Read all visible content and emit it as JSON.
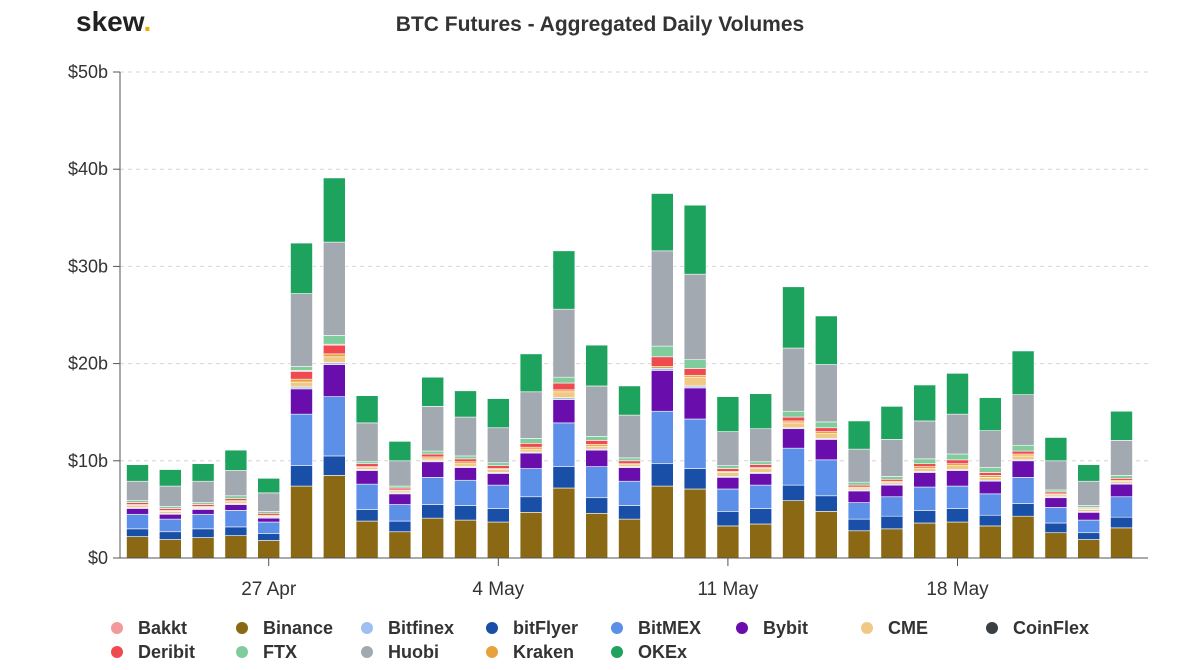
{
  "brand": {
    "name": "skew",
    "dot": "."
  },
  "chart_data": {
    "type": "bar",
    "stacked": true,
    "title": "BTC Futures - Aggregated Daily Volumes",
    "xlabel": "",
    "ylabel": "",
    "ylim": [
      0,
      50
    ],
    "yticks": [
      0,
      10,
      20,
      30,
      40,
      50
    ],
    "ytick_labels": [
      "$0",
      "$10b",
      "$20b",
      "$30b",
      "$40b",
      "$50b"
    ],
    "grid": true,
    "legend_position": "bottom",
    "x_tick_labels": [
      {
        "index": 4,
        "label": "27 Apr"
      },
      {
        "index": 11,
        "label": "4 May"
      },
      {
        "index": 18,
        "label": "11 May"
      },
      {
        "index": 25,
        "label": "18 May"
      }
    ],
    "categories": [
      "2020-04-23",
      "2020-04-24",
      "2020-04-25",
      "2020-04-26",
      "2020-04-27",
      "2020-04-28",
      "2020-04-29",
      "2020-04-30",
      "2020-05-01",
      "2020-05-02",
      "2020-05-03",
      "2020-05-04",
      "2020-05-05",
      "2020-05-06",
      "2020-05-07",
      "2020-05-08",
      "2020-05-09",
      "2020-05-10",
      "2020-05-11",
      "2020-05-12",
      "2020-05-13",
      "2020-05-14",
      "2020-05-15",
      "2020-05-16",
      "2020-05-17",
      "2020-05-18",
      "2020-05-19",
      "2020-05-20",
      "2020-05-21",
      "2020-05-22",
      "2020-05-23",
      "2020-05-24"
    ],
    "series": [
      {
        "name": "Binance",
        "color": "#8b6914",
        "values": [
          2.2,
          1.9,
          2.1,
          2.3,
          1.8,
          7.4,
          8.5,
          3.8,
          2.7,
          4.1,
          3.9,
          3.7,
          4.7,
          7.2,
          4.6,
          4.0,
          7.4,
          7.1,
          3.3,
          3.5,
          5.9,
          4.8,
          2.8,
          3.0,
          3.6,
          3.7,
          3.3,
          4.3,
          2.6,
          1.9,
          3.1,
          0
        ]
      },
      {
        "name": "bitFlyer",
        "color": "#1a4fa8",
        "values": [
          0.8,
          0.8,
          0.9,
          0.9,
          0.7,
          2.1,
          2.0,
          1.2,
          1.1,
          1.4,
          1.5,
          1.4,
          1.6,
          2.2,
          1.6,
          1.4,
          2.3,
          2.1,
          1.5,
          1.6,
          1.6,
          1.6,
          1.2,
          1.3,
          1.3,
          1.4,
          1.1,
          1.3,
          1.0,
          0.7,
          1.1,
          0
        ]
      },
      {
        "name": "BitMEX",
        "color": "#5b8fe8",
        "values": [
          1.5,
          1.3,
          1.5,
          1.7,
          1.2,
          5.3,
          6.1,
          2.6,
          1.7,
          2.8,
          2.6,
          2.4,
          2.9,
          4.5,
          3.2,
          2.5,
          5.4,
          5.1,
          2.3,
          2.4,
          3.8,
          3.7,
          1.7,
          2.0,
          2.4,
          2.3,
          2.2,
          2.7,
          1.6,
          1.3,
          2.1,
          0
        ]
      },
      {
        "name": "Bybit",
        "color": "#6a0dad",
        "values": [
          0.6,
          0.5,
          0.5,
          0.6,
          0.4,
          2.6,
          3.3,
          1.4,
          1.1,
          1.6,
          1.3,
          1.2,
          1.6,
          2.4,
          1.7,
          1.4,
          4.2,
          3.2,
          1.2,
          1.2,
          2.0,
          2.1,
          1.2,
          1.2,
          1.5,
          1.6,
          1.3,
          1.7,
          1.0,
          0.8,
          1.3,
          0
        ]
      },
      {
        "name": "Bitfinex",
        "color": "#9fbff2",
        "values": [
          0.1,
          0.1,
          0.1,
          0.1,
          0.1,
          0.2,
          0.2,
          0.1,
          0.1,
          0.1,
          0.1,
          0.1,
          0.1,
          0.2,
          0.1,
          0.1,
          0.2,
          0.2,
          0.1,
          0.1,
          0.1,
          0.1,
          0.1,
          0.1,
          0.1,
          0.1,
          0.1,
          0.1,
          0.1,
          0.1,
          0.1,
          0
        ]
      },
      {
        "name": "CME",
        "color": "#f0c987",
        "values": [
          0.2,
          0.2,
          0.1,
          0.2,
          0.1,
          0.5,
          0.6,
          0.2,
          0.2,
          0.2,
          0.3,
          0.3,
          0.3,
          0.6,
          0.3,
          0.2,
          0.0,
          0.9,
          0.4,
          0.4,
          0.5,
          0.5,
          0.2,
          0.2,
          0.3,
          0.4,
          0.3,
          0.4,
          0.2,
          0.2,
          0.2,
          0
        ]
      },
      {
        "name": "Kraken",
        "color": "#e8a23c",
        "values": [
          0.1,
          0.1,
          0.1,
          0.1,
          0.1,
          0.3,
          0.3,
          0.1,
          0.1,
          0.2,
          0.2,
          0.1,
          0.2,
          0.2,
          0.2,
          0.1,
          0.2,
          0.2,
          0.1,
          0.1,
          0.2,
          0.2,
          0.1,
          0.1,
          0.2,
          0.2,
          0.2,
          0.2,
          0.1,
          0.1,
          0.1,
          0
        ]
      },
      {
        "name": "Deribit",
        "color": "#ef4a50",
        "values": [
          0.2,
          0.2,
          0.2,
          0.2,
          0.2,
          0.8,
          0.9,
          0.3,
          0.2,
          0.3,
          0.3,
          0.3,
          0.4,
          0.7,
          0.4,
          0.3,
          1.0,
          0.7,
          0.3,
          0.3,
          0.4,
          0.4,
          0.2,
          0.2,
          0.3,
          0.4,
          0.3,
          0.3,
          0.2,
          0.1,
          0.2,
          0
        ]
      },
      {
        "name": "Bakkt",
        "color": "#f29a9a",
        "values": [
          0.0,
          0.0,
          0.0,
          0.0,
          0.0,
          0.1,
          0.1,
          0.0,
          0.0,
          0.0,
          0.0,
          0.0,
          0.0,
          0.0,
          0.0,
          0.0,
          0.0,
          0.0,
          0.0,
          0.0,
          0.0,
          0.0,
          0.0,
          0.0,
          0.0,
          0.0,
          0.0,
          0.0,
          0.0,
          0.0,
          0.0,
          0
        ]
      },
      {
        "name": "FTX",
        "color": "#7fcc9c",
        "values": [
          0.2,
          0.2,
          0.2,
          0.3,
          0.2,
          0.4,
          0.9,
          0.2,
          0.2,
          0.3,
          0.3,
          0.3,
          0.5,
          0.6,
          0.4,
          0.3,
          1.1,
          0.9,
          0.3,
          0.3,
          0.6,
          0.6,
          0.3,
          0.3,
          0.5,
          0.6,
          0.5,
          0.6,
          0.2,
          0.2,
          0.3,
          0
        ]
      },
      {
        "name": "Huobi",
        "color": "#a3a9b0",
        "values": [
          2.0,
          2.1,
          2.2,
          2.6,
          1.9,
          7.5,
          9.6,
          4.0,
          2.6,
          4.6,
          4.0,
          3.6,
          4.8,
          7.0,
          5.2,
          4.4,
          9.8,
          8.8,
          3.5,
          3.4,
          6.5,
          5.9,
          3.4,
          3.8,
          3.9,
          4.1,
          3.8,
          5.2,
          3.0,
          2.5,
          3.6,
          0
        ]
      },
      {
        "name": "OKEx",
        "color": "#1da35e",
        "values": [
          1.7,
          1.7,
          1.8,
          2.1,
          1.5,
          5.2,
          6.6,
          2.8,
          2.0,
          3.0,
          2.7,
          3.0,
          3.9,
          6.0,
          4.2,
          3.0,
          5.9,
          7.1,
          3.6,
          3.6,
          6.3,
          5.0,
          2.9,
          3.4,
          3.7,
          4.2,
          3.4,
          4.5,
          2.4,
          1.7,
          3.0,
          0
        ]
      }
    ],
    "legend": [
      {
        "name": "Bakkt",
        "color": "#f29a9a"
      },
      {
        "name": "Binance",
        "color": "#8b6914"
      },
      {
        "name": "Bitfinex",
        "color": "#9fbff2"
      },
      {
        "name": "bitFlyer",
        "color": "#1a4fa8"
      },
      {
        "name": "BitMEX",
        "color": "#5b8fe8"
      },
      {
        "name": "Bybit",
        "color": "#6a0dad"
      },
      {
        "name": "CME",
        "color": "#f0c987"
      },
      {
        "name": "CoinFlex",
        "color": "#3a3f44"
      },
      {
        "name": "Deribit",
        "color": "#ef4a50"
      },
      {
        "name": "FTX",
        "color": "#7fcc9c"
      },
      {
        "name": "Huobi",
        "color": "#a3a9b0"
      },
      {
        "name": "Kraken",
        "color": "#e8a23c"
      },
      {
        "name": "OKEx",
        "color": "#1da35e"
      }
    ]
  }
}
